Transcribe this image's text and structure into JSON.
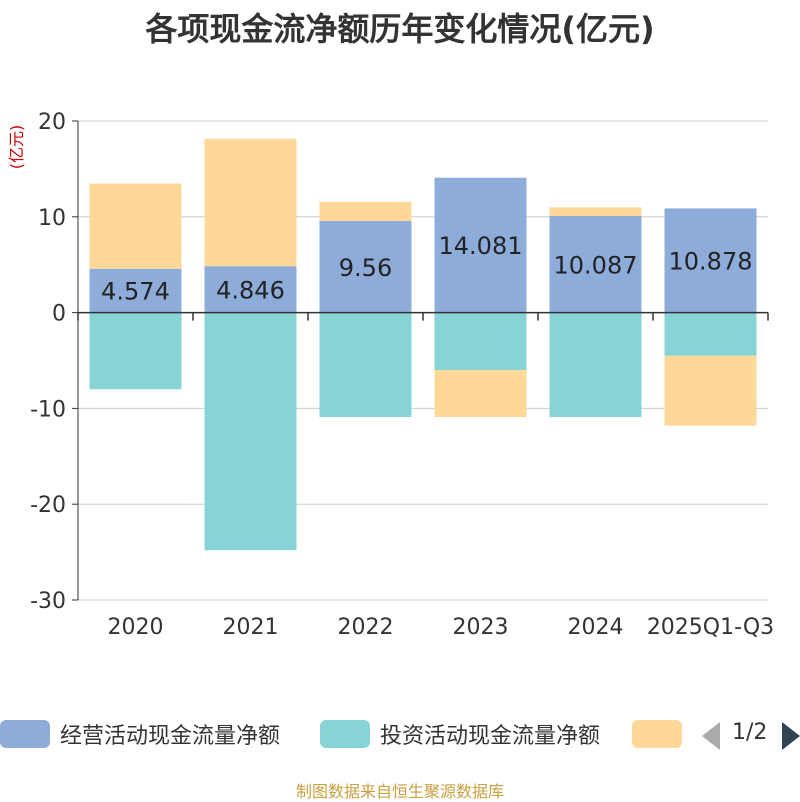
{
  "chart_data": {
    "type": "bar",
    "title": "各项现金流净额历年变化情况(亿元)",
    "ylabel": "(亿元)",
    "categories": [
      "2020",
      "2021",
      "2022",
      "2023",
      "2024",
      "2025Q1-Q3"
    ],
    "ylim": [
      -30,
      20
    ],
    "yticks": [
      20,
      10,
      0,
      -10,
      -20,
      -30
    ],
    "stacked": true,
    "series": [
      {
        "name": "经营活动现金流量净额",
        "color": "#8eacd9",
        "values": [
          4.574,
          4.846,
          9.56,
          14.081,
          10.087,
          10.878
        ],
        "show_labels": true
      },
      {
        "name": "投资活动现金流量净额",
        "color": "#86d4d6",
        "values": [
          -8.0,
          -24.8,
          -10.9,
          -6.0,
          -10.9,
          -4.5
        ],
        "show_labels": false
      },
      {
        "name": "",
        "color": "#fed899",
        "values": [
          8.9,
          13.3,
          2.0,
          -4.9,
          0.9,
          -7.3
        ],
        "show_labels": false
      }
    ]
  },
  "legend": {
    "pager": "1/2"
  },
  "source": "制图数据来自恒生聚源数据库"
}
